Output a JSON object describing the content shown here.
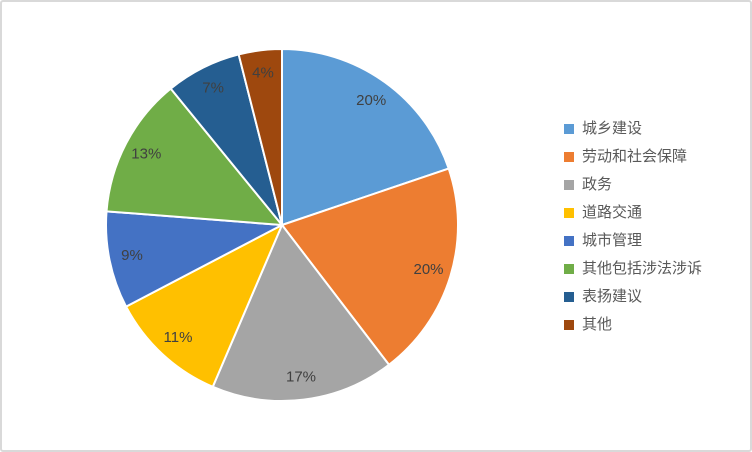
{
  "chart_data": {
    "type": "pie",
    "title": "",
    "categories": [
      "城乡建设",
      "劳动和社会保障",
      "政务",
      "道路交通",
      "城市管理",
      "其他包括涉法涉诉",
      "表扬建议",
      "其他"
    ],
    "values": [
      20,
      20,
      17,
      11,
      9,
      13,
      7,
      4
    ],
    "data_labels": [
      "20%",
      "20%",
      "17%",
      "11%",
      "9%",
      "13%",
      "7%",
      "4%"
    ],
    "colors": [
      "#5B9BD5",
      "#ED7D31",
      "#A5A5A5",
      "#FFC000",
      "#4472C4",
      "#70AD47",
      "#255E91",
      "#9E480E"
    ],
    "start_angle_deg": 0,
    "direction": "clockwise",
    "legend_position": "right",
    "slice_border_color": "#FFFFFF",
    "data_label_color": "#404040",
    "legend_text_color": "#595959"
  },
  "frame": {
    "background": "#FFFFFF",
    "border_color": "#D9D9D9"
  }
}
